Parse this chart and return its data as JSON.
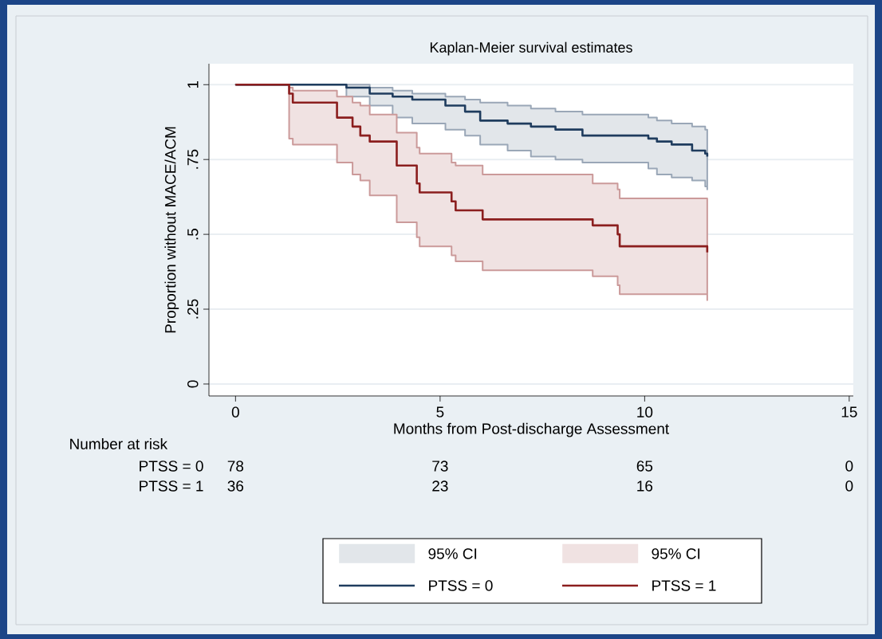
{
  "chart_data": {
    "type": "step",
    "title": "Kaplan-Meier survival estimates",
    "xlabel": "Months from Post-discharge Assessment",
    "ylabel": "Proportion without MACE/ACM",
    "xlim": [
      -0.65,
      15.1
    ],
    "ylim": [
      -0.04,
      1.07
    ],
    "xticks": [
      0,
      5,
      10,
      15
    ],
    "yticks": [
      0,
      {
        "value": 0.25,
        "label": ".25"
      },
      {
        "value": 0.5,
        "label": ".5"
      },
      {
        "value": 0.75,
        "label": ".75"
      },
      1
    ],
    "grid": "y",
    "legend": "bottom",
    "line_style": "solid",
    "annotations": [
      "Number at risk",
      "PTSS = 0",
      "78",
      "73",
      "65",
      "0",
      "PTSS = 1",
      "36",
      "23",
      "16",
      "0",
      "95% CI",
      "95% CI"
    ],
    "series": [
      {
        "name": "PTSS = 0",
        "color": "#1f3c5e",
        "x": [
          0,
          2.71,
          3.28,
          3.84,
          4.32,
          5.13,
          5.61,
          5.98,
          6.65,
          7.22,
          7.82,
          8.48,
          10.09,
          10.3,
          10.66,
          11.16,
          11.48,
          11.53
        ],
        "values": [
          1,
          0.99,
          0.97,
          0.96,
          0.95,
          0.93,
          0.91,
          0.88,
          0.87,
          0.86,
          0.85,
          0.83,
          0.82,
          0.81,
          0.8,
          0.78,
          0.77,
          0.76
        ],
        "upper": [
          1,
          1,
          0.99,
          0.98,
          0.97,
          0.96,
          0.95,
          0.94,
          0.93,
          0.92,
          0.91,
          0.9,
          0.89,
          0.88,
          0.87,
          0.86,
          0.85,
          0.85
        ],
        "lower": [
          1,
          0.96,
          0.93,
          0.89,
          0.87,
          0.85,
          0.83,
          0.8,
          0.78,
          0.76,
          0.75,
          0.74,
          0.72,
          0.7,
          0.69,
          0.68,
          0.66,
          0.65
        ]
      },
      {
        "name": "PTSS = 1",
        "color": "#8b1e1e",
        "x": [
          0,
          1.31,
          1.4,
          2.48,
          2.86,
          3.05,
          3.28,
          3.94,
          4.43,
          4.5,
          5.28,
          5.38,
          6.04,
          8.73,
          9.34,
          9.39,
          11.53
        ],
        "values": [
          1,
          0.97,
          0.94,
          0.89,
          0.86,
          0.83,
          0.81,
          0.73,
          0.67,
          0.64,
          0.61,
          0.58,
          0.55,
          0.53,
          0.5,
          0.46,
          0.44
        ],
        "upper": [
          1,
          0.99,
          0.98,
          0.96,
          0.94,
          0.93,
          0.9,
          0.84,
          0.79,
          0.77,
          0.74,
          0.73,
          0.7,
          0.67,
          0.65,
          0.62,
          0.62
        ],
        "lower": [
          1,
          0.82,
          0.8,
          0.74,
          0.7,
          0.68,
          0.63,
          0.54,
          0.49,
          0.46,
          0.43,
          0.41,
          0.38,
          0.36,
          0.33,
          0.3,
          0.28
        ]
      }
    ]
  }
}
